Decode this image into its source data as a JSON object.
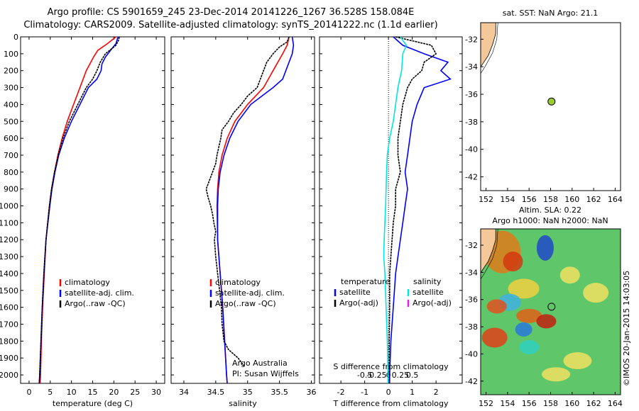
{
  "header": {
    "title_line1": "Argo profile: CS 5901659_245 23-Dec-2014 20141226_1267 36.528S 158.084E",
    "title_line2": "Climatology: CARS2009. Satellite-adjusted climatology: synTS_20141222.nc (1.1d earlier)"
  },
  "watermark": "©IMOS 20-Jan-2015 14:03:05",
  "colors": {
    "climatology": "#ff0000",
    "satellite": "#0000ff",
    "argo": "#000000",
    "cyan": "#00e5e5",
    "magenta": "#e020e0",
    "coast": "#f5c89a"
  },
  "chart_data": [
    {
      "type": "line",
      "id": "temperature",
      "xlabel": "temperature (deg C)",
      "xticks": [
        0,
        5,
        10,
        15,
        20,
        25,
        30
      ],
      "xlim": [
        -2,
        32
      ],
      "ylim": [
        0,
        2050
      ],
      "yticks": [
        0,
        100,
        200,
        300,
        400,
        500,
        600,
        700,
        800,
        900,
        1000,
        1100,
        1200,
        1300,
        1400,
        1500,
        1600,
        1700,
        1800,
        1900,
        2000
      ],
      "legend": [
        "climatology",
        "satellite-adj. clim.",
        "Argo(..raw -QC)"
      ],
      "series": [
        {
          "name": "climatology",
          "color": "#ff0000",
          "depth": [
            0,
            40,
            80,
            120,
            200,
            300,
            400,
            500,
            600,
            700,
            800,
            900,
            1000,
            1200,
            1400,
            1600,
            1800,
            2000,
            2050
          ],
          "values": [
            20.5,
            18.5,
            16.2,
            15.2,
            13.5,
            12.0,
            10.5,
            9.0,
            7.8,
            6.8,
            6.0,
            5.3,
            4.8,
            4.0,
            3.6,
            3.2,
            2.9,
            2.7,
            2.6
          ]
        },
        {
          "name": "satellite-adj. clim.",
          "color": "#0000ff",
          "depth": [
            0,
            40,
            80,
            120,
            160,
            200,
            250,
            300,
            400,
            500,
            600,
            700,
            800,
            900,
            1000,
            1200,
            1400,
            1600,
            1800,
            2000,
            2050
          ],
          "values": [
            21.0,
            20.5,
            19.2,
            18.0,
            17.2,
            17.0,
            16.0,
            14.0,
            12.0,
            10.0,
            8.3,
            7.0,
            6.1,
            5.4,
            4.9,
            4.0,
            3.5,
            3.1,
            2.8,
            2.5,
            2.4
          ]
        },
        {
          "name": "Argo(..raw -QC)",
          "color": "#000000",
          "depth": [
            0,
            20,
            50,
            80,
            100,
            150,
            200,
            250,
            300,
            400,
            500,
            600,
            700,
            800,
            900,
            1000,
            1200,
            1400,
            1600,
            1800,
            2000,
            2050
          ],
          "values": [
            21.3,
            21.1,
            20.5,
            19.0,
            18.0,
            16.8,
            16.0,
            15.0,
            13.5,
            11.5,
            9.5,
            8.0,
            6.9,
            6.0,
            5.3,
            4.8,
            4.0,
            3.5,
            3.1,
            2.8,
            2.5,
            2.4
          ]
        }
      ]
    },
    {
      "type": "line",
      "id": "salinity",
      "xlabel": "salinity",
      "xticks": [
        34,
        34.5,
        35,
        35.5,
        36
      ],
      "xlim": [
        33.8,
        36.05
      ],
      "ylim": [
        0,
        2050
      ],
      "legend": [
        "climatology",
        "satellite-adj. clim.",
        "Argo(..raw -QC)"
      ],
      "annotations": [
        "Argo Australia",
        "PI: Susan Wijffels"
      ],
      "series": [
        {
          "name": "climatology",
          "color": "#ff0000",
          "depth": [
            0,
            50,
            100,
            200,
            300,
            400,
            500,
            600,
            700,
            800,
            900,
            1000,
            1200,
            1400,
            1600,
            1800,
            2000,
            2050
          ],
          "values": [
            35.65,
            35.62,
            35.55,
            35.4,
            35.25,
            35.0,
            34.8,
            34.68,
            34.6,
            34.55,
            34.53,
            34.52,
            34.53,
            34.57,
            34.61,
            34.64,
            34.67,
            34.68
          ]
        },
        {
          "name": "satellite-adj. clim.",
          "color": "#0000ff",
          "depth": [
            0,
            50,
            100,
            150,
            200,
            250,
            300,
            400,
            500,
            600,
            700,
            800,
            900,
            1000,
            1200,
            1400,
            1600,
            1800,
            2000,
            2050
          ],
          "values": [
            35.7,
            35.72,
            35.7,
            35.65,
            35.6,
            35.55,
            35.4,
            35.05,
            34.85,
            34.72,
            34.63,
            34.57,
            34.54,
            34.53,
            34.53,
            34.57,
            34.61,
            34.64,
            34.67,
            34.68
          ]
        },
        {
          "name": "Argo(..raw -QC)",
          "color": "#000000",
          "depth": [
            0,
            30,
            60,
            100,
            150,
            200,
            250,
            300,
            350,
            400,
            450,
            500,
            550,
            600,
            650,
            700,
            750,
            800,
            850,
            900,
            950,
            1000,
            1050,
            1100,
            1150,
            1200,
            1300,
            1400,
            1500,
            1600,
            1700,
            1800,
            1850,
            1900,
            1950
          ],
          "values": [
            35.65,
            35.62,
            35.5,
            35.4,
            35.3,
            35.25,
            35.2,
            35.15,
            35.0,
            34.9,
            34.78,
            34.7,
            34.6,
            34.58,
            34.55,
            34.52,
            34.5,
            34.45,
            34.4,
            34.35,
            34.38,
            34.42,
            34.45,
            34.47,
            34.5,
            34.48,
            34.5,
            34.53,
            34.56,
            34.59,
            34.6,
            34.63,
            34.7,
            34.85,
            34.95
          ]
        }
      ]
    },
    {
      "type": "line",
      "id": "difference",
      "xlabel_top": "S difference from climatology",
      "xticks_top": [
        "-0.5",
        "-0.25",
        "0",
        "0.25",
        "0.5"
      ],
      "xlabel": "T difference from climatology",
      "xticks": [
        -2,
        -1,
        0,
        1,
        2
      ],
      "xlim": [
        -2.9,
        3.1
      ],
      "ylim": [
        0,
        2050
      ],
      "legend_left_title": "temperature",
      "legend_right_title": "salinity",
      "legend_left": [
        "satellite",
        "Argo(-adj)"
      ],
      "legend_right": [
        "satellite",
        "Argo(-adj)"
      ],
      "series": [
        {
          "name": "T satellite",
          "color": "#0000ff",
          "depth": [
            0,
            50,
            100,
            150,
            200,
            250,
            300,
            400,
            500,
            600,
            700,
            800,
            900,
            1000,
            1100,
            1200,
            1300,
            1400,
            1600,
            1800,
            2000,
            2050
          ],
          "values": [
            0.2,
            0.6,
            1.5,
            2.5,
            2.2,
            2.6,
            1.5,
            1.2,
            1.0,
            0.9,
            0.8,
            0.7,
            0.8,
            0.7,
            0.6,
            0.5,
            0.4,
            0.3,
            0.2,
            0.1,
            0.05,
            0.05
          ]
        },
        {
          "name": "T Argo(-adj)",
          "color": "#000000",
          "depth": [
            0,
            50,
            100,
            150,
            200,
            250,
            300,
            400,
            500,
            600,
            700,
            800,
            900,
            1000,
            1100,
            1200,
            1300,
            1400,
            1600,
            1800,
            2000,
            2050
          ],
          "values": [
            0.3,
            1.8,
            2.0,
            1.5,
            1.4,
            1.0,
            0.8,
            0.6,
            0.5,
            0.4,
            0.4,
            0.5,
            0.3,
            0.3,
            0.2,
            0.15,
            0.1,
            0.05,
            0.05,
            0.03,
            0.02,
            0.02
          ]
        },
        {
          "name": "S satellite",
          "color": "#00e5e5",
          "depth": [
            0,
            50,
            100,
            200,
            300,
            400,
            500,
            600,
            700,
            800,
            900,
            1000,
            1100,
            1200,
            1300,
            1400,
            1600,
            1800,
            2000,
            2050
          ],
          "values": [
            0.5,
            0.75,
            0.6,
            0.55,
            0.4,
            0.3,
            0.2,
            0.05,
            -0.05,
            -0.08,
            -0.1,
            -0.12,
            -0.15,
            -0.18,
            -0.2,
            -0.15,
            -0.1,
            -0.05,
            -0.02,
            -0.02
          ]
        }
      ]
    }
  ],
  "maps": {
    "top": {
      "title": "sat. SST: NaN Argo: 21.1",
      "xticks": [
        152,
        154,
        156,
        158,
        160,
        162,
        164
      ],
      "yticks": [
        -32,
        -34,
        -36,
        -38,
        -40,
        -42
      ],
      "xlim": [
        151.5,
        164.5
      ],
      "ylim": [
        -43,
        -30.8
      ],
      "profile_lon": 158.084,
      "profile_lat": -36.528
    },
    "bottom": {
      "title_line1": "Altim. SLA: 0.22",
      "title_line2": "Argo h1000: NaN h2000: NaN",
      "xticks": [
        152,
        154,
        156,
        158,
        160,
        162,
        164
      ],
      "yticks": [
        -32,
        -34,
        -36,
        -38,
        -40,
        -42
      ],
      "xlim": [
        151.5,
        164.5
      ],
      "ylim": [
        -43,
        -30.8
      ],
      "profile_lon": 158.084,
      "profile_lat": -36.528
    }
  }
}
